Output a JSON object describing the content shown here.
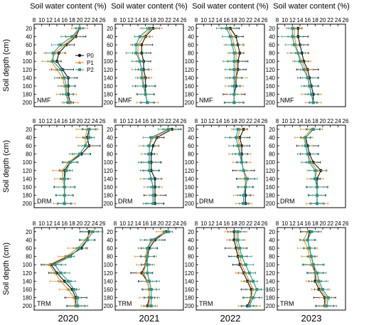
{
  "figure": {
    "top_axis_title": "Soil water content (%)",
    "y_axis_title": "Soil depth (cm)",
    "years": [
      "2020",
      "2021",
      "2022",
      "2023"
    ],
    "sites": [
      "NMF",
      "DRM",
      "TRM"
    ],
    "x_ticks": [
      "8",
      "10",
      "12",
      "14",
      "16",
      "18",
      "20",
      "22",
      "24",
      "26"
    ],
    "y_ticks": [
      "20",
      "40",
      "60",
      "80",
      "100",
      "120",
      "140",
      "160",
      "180",
      "200"
    ]
  },
  "chart_data": {
    "type": "line",
    "orientation": "profile",
    "xlim": [
      8,
      26
    ],
    "ylim": [
      10,
      210
    ],
    "y_inverted": true,
    "xlabel": "Soil water content (%)",
    "ylabel": "Soil depth (cm)",
    "depths": [
      20,
      40,
      60,
      80,
      100,
      120,
      140,
      160,
      180,
      200
    ],
    "legend": {
      "entries": [
        "P0",
        "P1",
        "P2"
      ],
      "placement": "top-right of first panel"
    },
    "series_styles": [
      {
        "name": "P0",
        "color": "#111111",
        "marker": "circle"
      },
      {
        "name": "P1",
        "color": "#f28a1a",
        "marker": "triangle"
      },
      {
        "name": "P2",
        "color": "#1f9a8c",
        "marker": "square"
      }
    ],
    "panels": [
      {
        "site": "NMF",
        "year": "2020",
        "P0": [
          20.0,
          19.0,
          16.5,
          14.5,
          14.0,
          15.5,
          17.0,
          17.0,
          17.0,
          17.5
        ],
        "P1": [
          20.0,
          18.5,
          16.0,
          13.5,
          12.5,
          14.0,
          15.5,
          16.0,
          16.5,
          17.5
        ],
        "P2": [
          20.0,
          18.0,
          15.0,
          13.0,
          13.0,
          15.0,
          16.0,
          16.5,
          16.5,
          17.0
        ]
      },
      {
        "site": "NMF",
        "year": "2021",
        "P0": [
          18.0,
          16.0,
          15.0,
          15.0,
          15.5,
          15.5,
          16.0,
          16.0,
          16.0,
          16.5
        ],
        "P1": [
          17.5,
          15.5,
          14.0,
          14.0,
          14.5,
          15.0,
          15.5,
          15.5,
          16.0,
          16.5
        ],
        "P2": [
          17.0,
          14.5,
          13.5,
          13.5,
          14.5,
          15.0,
          15.0,
          15.5,
          16.0,
          16.5
        ]
      },
      {
        "site": "NMF",
        "year": "2022",
        "P0": [
          17.0,
          18.5,
          19.0,
          19.5,
          19.0,
          19.0,
          18.5,
          18.5,
          18.0,
          18.0
        ],
        "P1": [
          16.5,
          17.5,
          18.0,
          18.5,
          18.5,
          18.5,
          18.5,
          18.0,
          18.0,
          18.0
        ],
        "P2": [
          16.0,
          17.0,
          17.5,
          18.0,
          18.0,
          18.0,
          18.0,
          18.0,
          18.0,
          18.0
        ]
      },
      {
        "site": "NMF",
        "year": "2023",
        "P0": [
          13.5,
          13.5,
          14.0,
          14.5,
          15.0,
          16.0,
          16.5,
          17.0,
          17.5,
          17.5
        ],
        "P1": [
          12.5,
          12.5,
          13.0,
          13.5,
          14.5,
          15.5,
          16.0,
          16.5,
          17.0,
          17.5
        ],
        "P2": [
          12.0,
          12.0,
          12.5,
          13.5,
          14.0,
          15.0,
          16.0,
          16.5,
          17.0,
          17.5
        ]
      },
      {
        "site": "DRM",
        "year": "2020",
        "P0": [
          22.5,
          22.0,
          22.5,
          20.5,
          17.5,
          16.0,
          16.0,
          16.0,
          16.0,
          16.0
        ],
        "P1": [
          22.0,
          21.5,
          21.5,
          20.0,
          17.0,
          15.5,
          15.5,
          16.0,
          16.0,
          16.0
        ],
        "P2": [
          22.5,
          22.5,
          21.5,
          20.0,
          17.5,
          16.5,
          16.0,
          16.0,
          16.0,
          16.0
        ]
      },
      {
        "site": "DRM",
        "year": "2021",
        "P0": [
          23.0,
          19.0,
          18.0,
          17.5,
          17.5,
          17.5,
          18.5,
          18.5,
          18.5,
          18.5
        ],
        "P1": [
          22.5,
          18.0,
          17.0,
          17.0,
          17.0,
          17.0,
          17.5,
          18.0,
          18.0,
          18.0
        ],
        "P2": [
          22.0,
          17.5,
          17.0,
          17.0,
          17.0,
          17.0,
          17.5,
          18.0,
          18.0,
          18.0
        ]
      },
      {
        "site": "DRM",
        "year": "2022",
        "P0": [
          20.5,
          19.5,
          20.0,
          20.0,
          20.0,
          20.5,
          21.0,
          21.0,
          21.0,
          21.0
        ],
        "P1": [
          19.5,
          19.0,
          19.5,
          19.5,
          20.0,
          20.5,
          21.0,
          21.0,
          20.5,
          20.5
        ],
        "P2": [
          19.0,
          18.5,
          19.0,
          19.5,
          20.0,
          20.5,
          21.5,
          21.0,
          20.5,
          20.5
        ]
      },
      {
        "site": "DRM",
        "year": "2023",
        "P0": [
          17.5,
          15.5,
          16.0,
          16.5,
          17.5,
          19.5,
          18.5,
          18.5,
          18.5,
          18.5
        ],
        "P1": [
          17.0,
          15.0,
          15.5,
          16.0,
          17.0,
          18.5,
          18.0,
          18.5,
          18.5,
          18.5
        ],
        "P2": [
          17.5,
          15.5,
          15.5,
          16.0,
          16.5,
          18.0,
          18.0,
          18.5,
          18.5,
          18.5
        ]
      },
      {
        "site": "TRM",
        "year": "2020",
        "P0": [
          22.5,
          22.0,
          20.5,
          17.0,
          12.5,
          14.0,
          16.0,
          18.0,
          19.0,
          19.0
        ],
        "P1": [
          23.0,
          21.5,
          19.5,
          16.5,
          12.0,
          13.5,
          15.0,
          17.0,
          18.5,
          19.0
        ],
        "P2": [
          23.5,
          22.0,
          20.0,
          17.5,
          13.5,
          15.0,
          17.0,
          18.5,
          19.5,
          19.5
        ]
      },
      {
        "site": "TRM",
        "year": "2021",
        "P0": [
          21.5,
          18.5,
          17.0,
          16.5,
          16.0,
          15.0,
          16.5,
          17.0,
          17.0,
          16.5
        ],
        "P1": [
          21.0,
          18.0,
          16.5,
          16.0,
          16.0,
          15.5,
          16.5,
          17.0,
          17.0,
          17.0
        ],
        "P2": [
          22.0,
          17.5,
          16.5,
          16.5,
          16.5,
          16.5,
          17.0,
          17.5,
          17.5,
          17.5
        ]
      },
      {
        "site": "TRM",
        "year": "2022",
        "P0": [
          18.0,
          18.0,
          18.5,
          19.0,
          19.5,
          20.5,
          21.5,
          22.5,
          22.5,
          21.5
        ],
        "P1": [
          18.5,
          18.5,
          19.0,
          19.5,
          20.0,
          21.0,
          22.0,
          23.0,
          22.5,
          22.0
        ],
        "P2": [
          19.0,
          19.0,
          19.5,
          20.0,
          21.0,
          22.0,
          23.0,
          24.0,
          23.0,
          22.0
        ]
      },
      {
        "site": "TRM",
        "year": "2023",
        "P0": [
          16.5,
          16.0,
          16.5,
          17.0,
          17.5,
          18.0,
          18.0,
          19.0,
          20.5,
          20.5
        ],
        "P1": [
          16.0,
          15.0,
          16.0,
          16.5,
          17.0,
          18.0,
          18.5,
          19.5,
          21.0,
          20.5
        ],
        "P2": [
          17.0,
          16.0,
          16.5,
          17.0,
          17.5,
          18.5,
          19.0,
          20.0,
          21.5,
          21.0
        ]
      }
    ]
  }
}
